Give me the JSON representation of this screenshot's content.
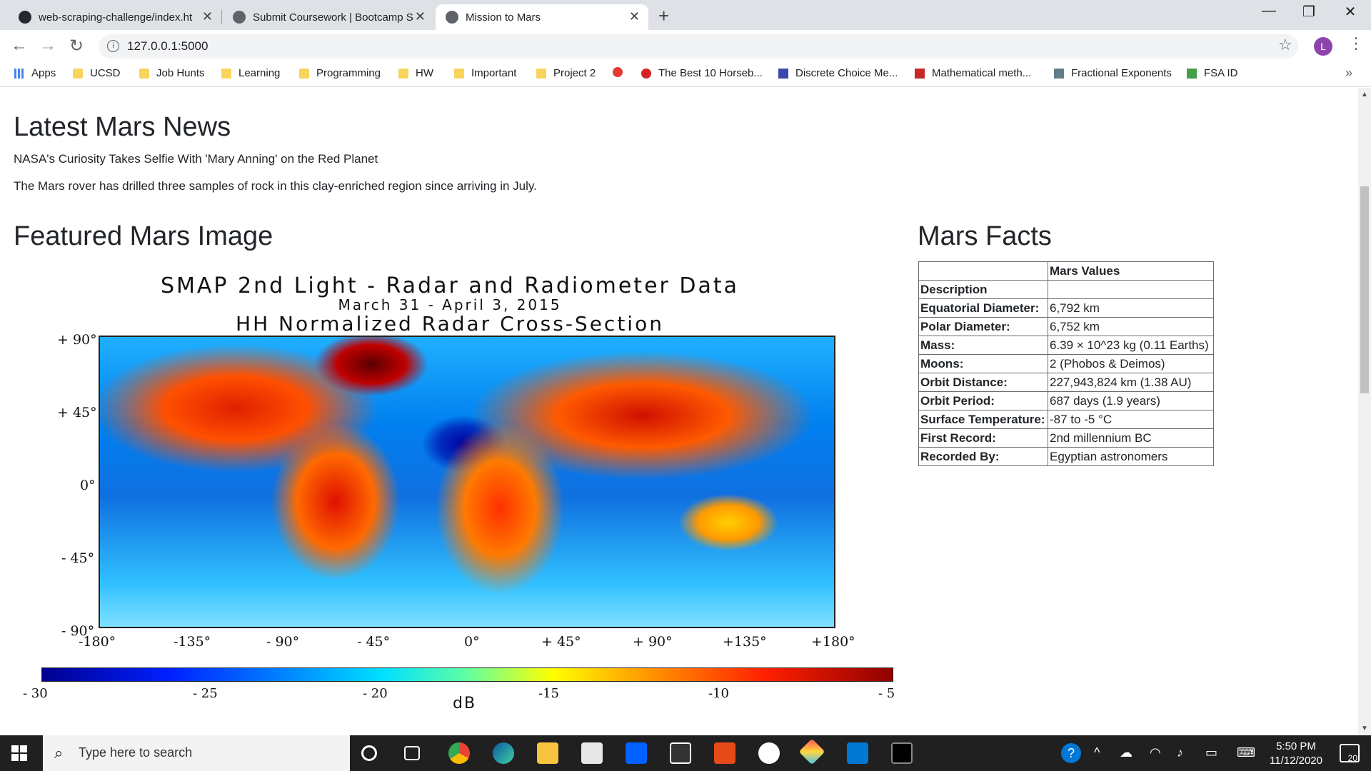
{
  "tabs": [
    {
      "label": "web-scraping-challenge/index.ht",
      "close": "✕"
    },
    {
      "label": "Submit Coursework | Bootcamp S",
      "close": "✕"
    },
    {
      "label": "Mission to Mars",
      "close": "✕"
    }
  ],
  "new_tab": "+",
  "window_controls": {
    "minimize": "—",
    "restore": "❐",
    "close": "✕"
  },
  "toolbar": {
    "back": "←",
    "forward": "→",
    "reload": "↻",
    "url": "127.0.0.1:5000",
    "info": "i",
    "star": "☆",
    "profile": "L",
    "menu": "⋮"
  },
  "bookmarks": [
    "Apps",
    "UCSD",
    "Job Hunts",
    "Learning",
    "Programming",
    "HW",
    "Important",
    "Project 2",
    "The Best 10 Horseb...",
    "Discrete Choice Me...",
    "Mathematical meth...",
    "Fractional Exponents",
    "FSA ID"
  ],
  "bookmarks_more": "»",
  "news": {
    "heading": "Latest Mars News",
    "title": "NASA's Curiosity Takes Selfie With 'Mary Anning' on the Red Planet",
    "paragraph": "The Mars rover has drilled three samples of rock in this clay-enriched region since arriving in July."
  },
  "featured": {
    "heading": "Featured Mars Image",
    "image_title": "SMAP 2nd Light - Radar and Radiometer Data",
    "image_dates": "March 31 - April 3, 2015",
    "image_subtitle": "HH Normalized Radar Cross-Section",
    "y_ticks": [
      "+ 90°",
      "+ 45°",
      "0°",
      "- 45°",
      "- 90°"
    ],
    "x_ticks": [
      "-180°",
      "-135°",
      "- 90°",
      "- 45°",
      "0°",
      "+ 45°",
      "+ 90°",
      "+135°",
      "+180°"
    ],
    "colorbar_ticks": [
      "- 30",
      "- 25",
      "- 20",
      "-15",
      "-10",
      "- 5"
    ],
    "colorbar_unit": "dB"
  },
  "facts": {
    "heading": "Mars Facts",
    "column_header": "Mars Values",
    "rows": [
      {
        "k": "Description",
        "v": ""
      },
      {
        "k": "Equatorial Diameter:",
        "v": "6,792 km"
      },
      {
        "k": "Polar Diameter:",
        "v": "6,752 km"
      },
      {
        "k": "Mass:",
        "v": "6.39 × 10^23 kg (0.11 Earths)"
      },
      {
        "k": "Moons:",
        "v": "2 (Phobos & Deimos)"
      },
      {
        "k": "Orbit Distance:",
        "v": "227,943,824 km (1.38 AU)"
      },
      {
        "k": "Orbit Period:",
        "v": "687 days (1.9 years)"
      },
      {
        "k": "Surface Temperature:",
        "v": "-87 to -5 °C"
      },
      {
        "k": "First Record:",
        "v": "2nd millennium BC"
      },
      {
        "k": "Recorded By:",
        "v": "Egyptian astronomers"
      }
    ]
  },
  "taskbar": {
    "search_placeholder": "Type here to search",
    "time": "5:50 PM",
    "date": "11/12/2020",
    "notifications": "20"
  }
}
